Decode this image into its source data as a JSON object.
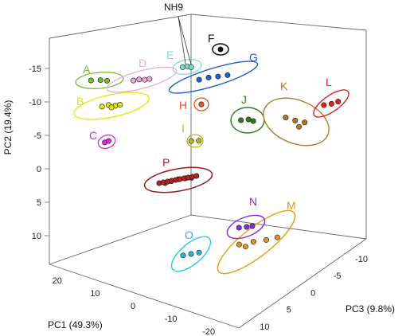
{
  "chart_data": {
    "type": "scatter",
    "xlabel": "PC1 (49.3%)",
    "ylabel": "PC2 (19.4%)",
    "zlabel": "PC3 (9.8%)",
    "x_ticks": [
      "20",
      "10",
      "0",
      "-10",
      "-20"
    ],
    "y_ticks": [
      "-15",
      "-10",
      "-5",
      "0",
      "5",
      "10"
    ],
    "z_ticks": [
      "-10",
      "-5",
      "0",
      "5",
      "10"
    ],
    "annotation": "NH9",
    "groups": [
      {
        "label": "A",
        "color": "#6fbf2a",
        "points": [
          [
            -0.5,
            -13.5
          ],
          [
            0.5,
            -13.6
          ],
          [
            1.2,
            -13.4
          ]
        ]
      },
      {
        "label": "B",
        "color": "#e6e600",
        "points": [
          [
            -0.6,
            -10.2
          ],
          [
            0.1,
            -10.8
          ],
          [
            0.8,
            -10.5
          ],
          [
            1.3,
            -10.9
          ],
          [
            0.4,
            -9.9
          ]
        ]
      },
      {
        "label": "C",
        "color": "#d62fd6",
        "points": [
          [
            -0.2,
            -5.1
          ],
          [
            0.2,
            -5.6
          ]
        ]
      },
      {
        "label": "D",
        "color": "#f0a6d9",
        "points": [
          [
            -0.3,
            -14.2
          ],
          [
            0.3,
            -14.6
          ],
          [
            0.9,
            -14.5
          ],
          [
            1.4,
            -14.8
          ]
        ]
      },
      {
        "label": "E",
        "color": "#7be0d3",
        "points": [
          [
            -0.2,
            -17.0
          ],
          [
            0.3,
            -17.3
          ],
          [
            0.7,
            -17.0
          ]
        ]
      },
      {
        "label": "F",
        "color": "#111111",
        "points": [
          [
            0.0,
            -18.2
          ]
        ]
      },
      {
        "label": "G",
        "color": "#1f5fd6",
        "points": [
          [
            -1.0,
            -14.8
          ],
          [
            0.0,
            -15.6
          ],
          [
            1.0,
            -16.0
          ],
          [
            2.0,
            -16.5
          ]
        ]
      },
      {
        "label": "H",
        "color": "#e8501f",
        "points": [
          [
            0.0,
            -11.5
          ]
        ]
      },
      {
        "label": "I",
        "color": "#b8b81a",
        "points": [
          [
            -0.4,
            -6.5
          ],
          [
            0.4,
            -6.6
          ]
        ]
      },
      {
        "label": "J",
        "color": "#2e7d1a",
        "points": [
          [
            -0.5,
            -8.6
          ],
          [
            0.3,
            -8.9
          ],
          [
            0.8,
            -8.3
          ]
        ]
      },
      {
        "label": "K",
        "color": "#b07a1a",
        "points": [
          [
            -1.0,
            -10.4
          ],
          [
            0.0,
            -9.3
          ],
          [
            1.0,
            -8.6
          ],
          [
            0.4,
            -7.0
          ]
        ]
      },
      {
        "label": "L",
        "color": "#e02020",
        "points": [
          [
            -0.5,
            -12.3
          ],
          [
            0.3,
            -12.8
          ],
          [
            1.0,
            -13.6
          ]
        ]
      },
      {
        "label": "M",
        "color": "#e8921a",
        "points": [
          [
            -1.2,
            8.5
          ],
          [
            -0.3,
            7.5
          ],
          [
            0.5,
            6.9
          ],
          [
            1.2,
            6.0
          ],
          [
            -0.8,
            9.2
          ]
        ]
      },
      {
        "label": "N",
        "color": "#8a2be2",
        "points": [
          [
            -0.6,
            5.8
          ],
          [
            0.2,
            5.5
          ],
          [
            0.8,
            5.2
          ]
        ]
      },
      {
        "label": "O",
        "color": "#1fb8d6",
        "points": [
          [
            -0.5,
            10.8
          ],
          [
            0.0,
            10.3
          ],
          [
            0.5,
            9.8
          ]
        ]
      },
      {
        "label": "P",
        "color": "#b52020",
        "points": [
          [
            -1.5,
            -0.4
          ],
          [
            -0.8,
            -0.8
          ],
          [
            0.0,
            -1.2
          ],
          [
            0.8,
            -1.4
          ],
          [
            1.5,
            -1.5
          ]
        ]
      }
    ]
  }
}
